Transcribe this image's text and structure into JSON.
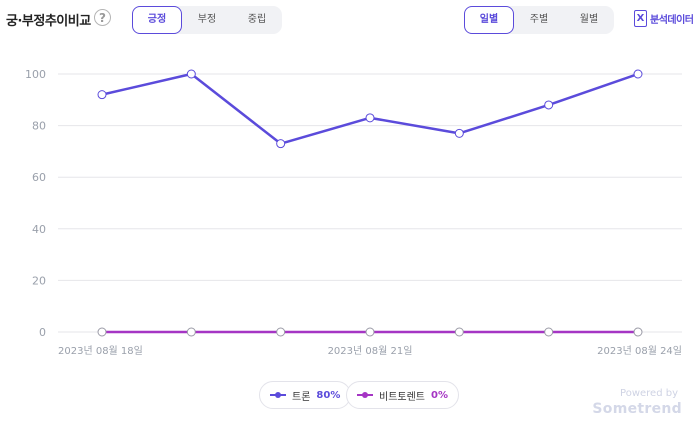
{
  "header": {
    "title": "궁·부정추이비교",
    "help_icon": "?",
    "tone_tabs": [
      {
        "label": "긍정",
        "active": true
      },
      {
        "label": "부정",
        "active": false
      },
      {
        "label": "중립",
        "active": false
      }
    ],
    "period_tabs": [
      {
        "label": "일별",
        "active": true
      },
      {
        "label": "주별",
        "active": false
      },
      {
        "label": "월별",
        "active": false
      }
    ],
    "export": {
      "icon": "excel-icon",
      "icon_glyph": "X",
      "label": "분석데이터"
    }
  },
  "chart_data": {
    "type": "line",
    "x": [
      "2023-08-18",
      "2023-08-19",
      "2023-08-20",
      "2023-08-21",
      "2023-08-22",
      "2023-08-23",
      "2023-08-24"
    ],
    "xtick_labels": [
      "2023년 08월 18일",
      "2023년 08월 21일",
      "2023년 08월 24일"
    ],
    "xtick_index": [
      0,
      3,
      6
    ],
    "ylim": [
      0,
      100
    ],
    "yticks": [
      0,
      20,
      40,
      60,
      80,
      100
    ],
    "grid": true,
    "series": [
      {
        "name": "트론",
        "color": "#5b4bdb",
        "values": [
          92,
          100,
          73,
          83,
          77,
          88,
          100
        ]
      },
      {
        "name": "비트토렌트",
        "color": "#a535c4",
        "values": [
          0,
          0,
          0,
          0,
          0,
          0,
          0
        ]
      }
    ]
  },
  "legend": [
    {
      "name": "트론",
      "percent": "80%",
      "color": "#5b4bdb"
    },
    {
      "name": "비트토렌트",
      "percent": "0%",
      "color": "#a535c4"
    }
  ],
  "footer": {
    "powered": "Powered by",
    "brand": "Sometrend"
  }
}
